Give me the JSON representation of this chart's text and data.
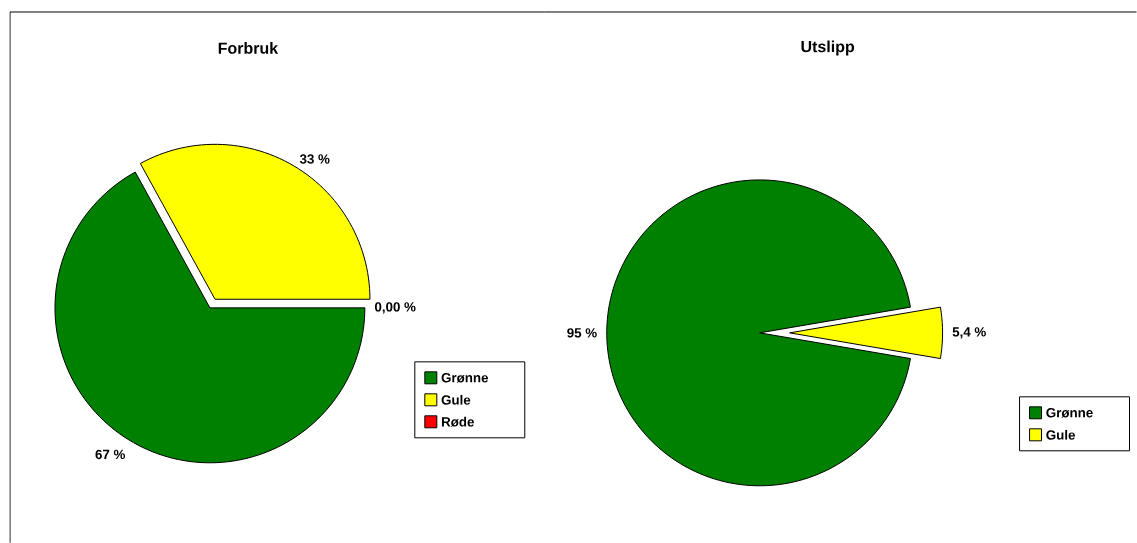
{
  "chart_data": [
    {
      "type": "pie",
      "title": "Forbruk",
      "categories": [
        "Grønne",
        "Gule",
        "Røde"
      ],
      "values": [
        67,
        33,
        0
      ],
      "colors": [
        "#008000",
        "#ffff00",
        "#ff0000"
      ],
      "value_labels": [
        "67 %",
        "33 %",
        "0,00 %"
      ],
      "legend": "right"
    },
    {
      "type": "pie",
      "title": "Utslipp",
      "categories": [
        "Grønne",
        "Gule"
      ],
      "values": [
        95,
        5.4
      ],
      "colors": [
        "#008000",
        "#ffff00"
      ],
      "value_labels": [
        "95 %",
        "5,4 %"
      ],
      "legend": "right"
    }
  ]
}
